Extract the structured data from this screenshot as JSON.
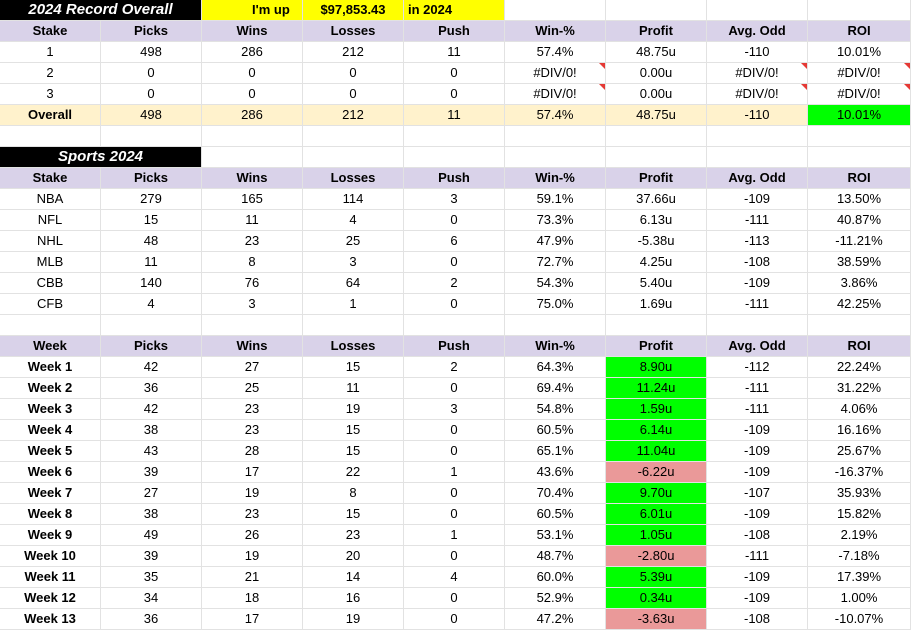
{
  "header": {
    "title": "2024 Record Overall",
    "im_up_label": "I'm up",
    "amount": "$97,853.43",
    "suffix": "in 2024"
  },
  "columns": [
    "Stake",
    "Picks",
    "Wins",
    "Losses",
    "Push",
    "Win-%",
    "Profit",
    "Avg. Odd",
    "ROI"
  ],
  "stake_rows": [
    [
      "1",
      "498",
      "286",
      "212",
      "11",
      "57.4%",
      "48.75u",
      "-110",
      "10.01%"
    ],
    [
      "2",
      "0",
      "0",
      "0",
      "0",
      "#DIV/0!",
      "0.00u",
      "#DIV/0!",
      "#DIV/0!"
    ],
    [
      "3",
      "0",
      "0",
      "0",
      "0",
      "#DIV/0!",
      "0.00u",
      "#DIV/0!",
      "#DIV/0!"
    ]
  ],
  "overall_row": [
    "Overall",
    "498",
    "286",
    "212",
    "11",
    "57.4%",
    "48.75u",
    "-110",
    "10.01%"
  ],
  "sports_title": "Sports 2024",
  "sports_rows": [
    [
      "NBA",
      "279",
      "165",
      "114",
      "3",
      "59.1%",
      "37.66u",
      "-109",
      "13.50%"
    ],
    [
      "NFL",
      "15",
      "11",
      "4",
      "0",
      "73.3%",
      "6.13u",
      "-111",
      "40.87%"
    ],
    [
      "NHL",
      "48",
      "23",
      "25",
      "6",
      "47.9%",
      "-5.38u",
      "-113",
      "-11.21%"
    ],
    [
      "MLB",
      "11",
      "8",
      "3",
      "0",
      "72.7%",
      "4.25u",
      "-108",
      "38.59%"
    ],
    [
      "CBB",
      "140",
      "76",
      "64",
      "2",
      "54.3%",
      "5.40u",
      "-109",
      "3.86%"
    ],
    [
      "CFB",
      "4",
      "3",
      "1",
      "0",
      "75.0%",
      "1.69u",
      "-111",
      "42.25%"
    ]
  ],
  "week_columns": [
    "Week",
    "Picks",
    "Wins",
    "Losses",
    "Push",
    "Win-%",
    "Profit",
    "Avg. Odd",
    "ROI"
  ],
  "week_rows": [
    [
      "Week 1",
      "42",
      "27",
      "15",
      "2",
      "64.3%",
      "8.90u",
      "-112",
      "22.24%"
    ],
    [
      "Week 2",
      "36",
      "25",
      "11",
      "0",
      "69.4%",
      "11.24u",
      "-111",
      "31.22%"
    ],
    [
      "Week 3",
      "42",
      "23",
      "19",
      "3",
      "54.8%",
      "1.59u",
      "-111",
      "4.06%"
    ],
    [
      "Week 4",
      "38",
      "23",
      "15",
      "0",
      "60.5%",
      "6.14u",
      "-109",
      "16.16%"
    ],
    [
      "Week 5",
      "43",
      "28",
      "15",
      "0",
      "65.1%",
      "11.04u",
      "-109",
      "25.67%"
    ],
    [
      "Week 6",
      "39",
      "17",
      "22",
      "1",
      "43.6%",
      "-6.22u",
      "-109",
      "-16.37%"
    ],
    [
      "Week 7",
      "27",
      "19",
      "8",
      "0",
      "70.4%",
      "9.70u",
      "-107",
      "35.93%"
    ],
    [
      "Week 8",
      "38",
      "23",
      "15",
      "0",
      "60.5%",
      "6.01u",
      "-109",
      "15.82%"
    ],
    [
      "Week 9",
      "49",
      "26",
      "23",
      "1",
      "53.1%",
      "1.05u",
      "-108",
      "2.19%"
    ],
    [
      "Week 10",
      "39",
      "19",
      "20",
      "0",
      "48.7%",
      "-2.80u",
      "-111",
      "-7.18%"
    ],
    [
      "Week 11",
      "35",
      "21",
      "14",
      "4",
      "60.0%",
      "5.39u",
      "-109",
      "17.39%"
    ],
    [
      "Week 12",
      "34",
      "18",
      "16",
      "0",
      "52.9%",
      "0.34u",
      "-109",
      "1.00%"
    ],
    [
      "Week 13",
      "36",
      "17",
      "19",
      "0",
      "47.2%",
      "-3.63u",
      "-108",
      "-10.07%"
    ]
  ],
  "colors": {
    "header_bg": "#d9d2e9",
    "overall_bg": "#fff2cc",
    "positive": "#00ff00",
    "negative": "#ea9999",
    "banner": "#ffff00",
    "title_bg": "#000000"
  }
}
